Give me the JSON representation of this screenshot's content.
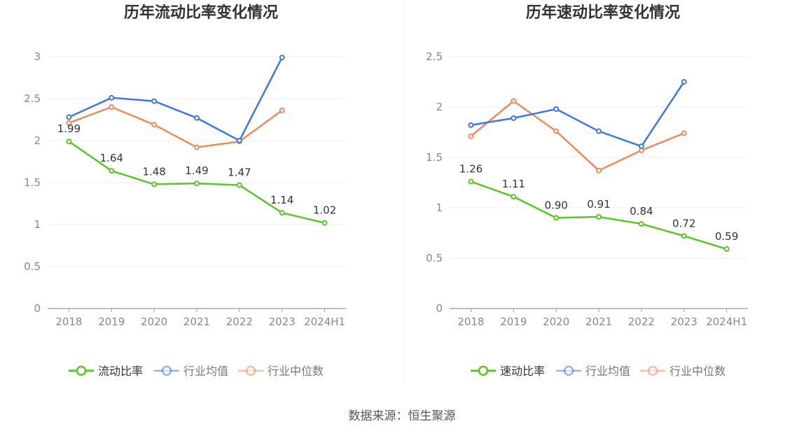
{
  "footer": {
    "source": "数据来源：恒生聚源"
  },
  "colors": {
    "primary": "#5bc429",
    "average": "#3e78e0",
    "median": "#f08a5d",
    "grid": "#e8ecf4",
    "axis": "#888888"
  },
  "chart_data": [
    {
      "type": "line",
      "title": "历年流动比率变化情况",
      "categories": [
        "2018",
        "2019",
        "2020",
        "2021",
        "2022",
        "2023",
        "2024H1"
      ],
      "ylim": [
        0,
        3
      ],
      "yticks": [
        "0",
        "0.5",
        "1",
        "1.5",
        "2",
        "2.5",
        "3"
      ],
      "grid": true,
      "legend_position": "bottom",
      "series": [
        {
          "name": "流动比率",
          "key": "primary",
          "values": [
            1.99,
            1.64,
            1.48,
            1.49,
            1.47,
            1.14,
            1.02
          ],
          "labels": [
            "1.99",
            "1.64",
            "1.48",
            "1.49",
            "1.47",
            "1.14",
            "1.02"
          ]
        },
        {
          "name": "行业均值",
          "key": "average",
          "values": [
            2.28,
            2.51,
            2.47,
            2.27,
            2.0,
            2.99,
            null
          ]
        },
        {
          "name": "行业中位数",
          "key": "median",
          "values": [
            2.21,
            2.4,
            2.19,
            1.92,
            1.99,
            2.36,
            null
          ]
        }
      ]
    },
    {
      "type": "line",
      "title": "历年速动比率变化情况",
      "categories": [
        "2018",
        "2019",
        "2020",
        "2021",
        "2022",
        "2023",
        "2024H1"
      ],
      "ylim": [
        0,
        2.5
      ],
      "yticks": [
        "0",
        "0.5",
        "1",
        "1.5",
        "2",
        "2.5"
      ],
      "grid": true,
      "legend_position": "bottom",
      "series": [
        {
          "name": "速动比率",
          "key": "primary",
          "values": [
            1.26,
            1.11,
            0.9,
            0.91,
            0.84,
            0.72,
            0.59
          ],
          "labels": [
            "1.26",
            "1.11",
            "0.90",
            "0.91",
            "0.84",
            "0.72",
            "0.59"
          ]
        },
        {
          "name": "行业均值",
          "key": "average",
          "values": [
            1.82,
            1.89,
            1.98,
            1.76,
            1.61,
            2.25,
            null
          ]
        },
        {
          "name": "行业中位数",
          "key": "median",
          "values": [
            1.71,
            2.06,
            1.76,
            1.37,
            1.57,
            1.74,
            null
          ]
        }
      ]
    }
  ]
}
